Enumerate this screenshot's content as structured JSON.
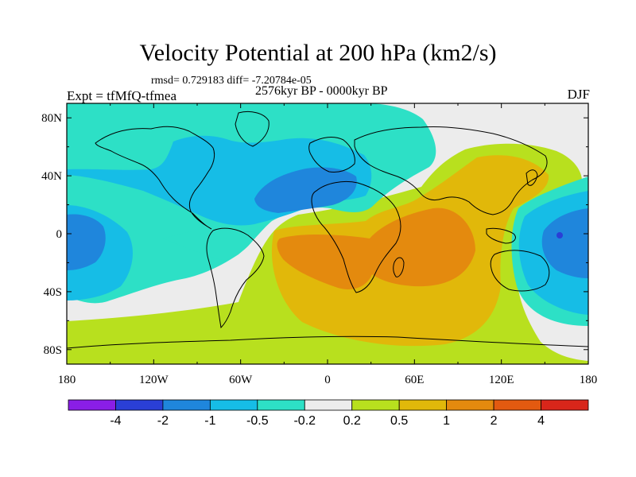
{
  "title": "Velocity Potential at 200 hPa (km2/s)",
  "stats": "rmsd= 0.729183 diff= -7.20784e-05",
  "left_label": "Expt = tfMfQ-tfmea",
  "center_label": "2576kyr BP - 0000kyr BP",
  "right_label": "DJF",
  "map": {
    "lon_range": [
      -180,
      180
    ],
    "lat_range": [
      -90,
      90
    ],
    "lat_ticks": [
      {
        "value": 80,
        "label": "80N"
      },
      {
        "value": 40,
        "label": "40N"
      },
      {
        "value": 0,
        "label": "0"
      },
      {
        "value": -40,
        "label": "40S"
      },
      {
        "value": -80,
        "label": "80S"
      }
    ],
    "lon_ticks": [
      {
        "value": -180,
        "label": "180"
      },
      {
        "value": -120,
        "label": "120W"
      },
      {
        "value": -60,
        "label": "60W"
      },
      {
        "value": 0,
        "label": "0"
      },
      {
        "value": 60,
        "label": "60E"
      },
      {
        "value": 120,
        "label": "120E"
      },
      {
        "value": 180,
        "label": "180"
      }
    ]
  },
  "colorbar": {
    "labels": [
      "-4",
      "-2",
      "-1",
      "-0.5",
      "-0.2",
      "0.2",
      "0.5",
      "1",
      "2",
      "4"
    ],
    "colors": [
      "#8a1ee6",
      "#2a3fd6",
      "#1f86dc",
      "#16bde6",
      "#2de0c6",
      "#ececec",
      "#b8e01e",
      "#e1b80a",
      "#e48a0e",
      "#e35a10",
      "#d8261a"
    ]
  }
}
